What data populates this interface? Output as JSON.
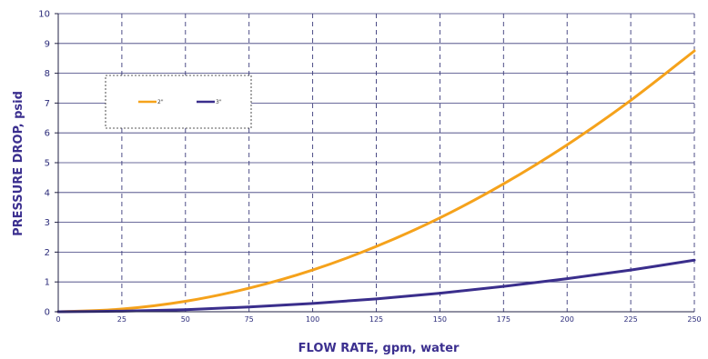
{
  "chart_data": {
    "type": "line",
    "xlabel": "FLOW RATE, gpm, water",
    "ylabel": "PRESSURE DROP, psid",
    "xlim": [
      0,
      250
    ],
    "ylim": [
      0,
      10
    ],
    "x_ticks": [
      0,
      25,
      50,
      75,
      100,
      125,
      150,
      175,
      200,
      225,
      250
    ],
    "y_ticks": [
      0,
      1,
      2,
      3,
      4,
      5,
      6,
      7,
      8,
      9,
      10
    ],
    "grid": true,
    "legend_position": "top-left",
    "series": [
      {
        "name": "2\"",
        "color": "#F5A21B",
        "x": [
          0,
          25,
          50,
          75,
          100,
          125,
          150,
          175,
          200,
          225,
          250
        ],
        "values": [
          0,
          0.09,
          0.35,
          0.79,
          1.4,
          2.19,
          3.15,
          4.29,
          5.6,
          7.09,
          8.75
        ]
      },
      {
        "name": "3\"",
        "color": "#3A2E8C",
        "x": [
          0,
          25,
          50,
          75,
          100,
          125,
          150,
          175,
          200,
          225,
          250
        ],
        "values": [
          0,
          0.02,
          0.07,
          0.16,
          0.28,
          0.43,
          0.62,
          0.85,
          1.11,
          1.4,
          1.73
        ]
      }
    ]
  }
}
